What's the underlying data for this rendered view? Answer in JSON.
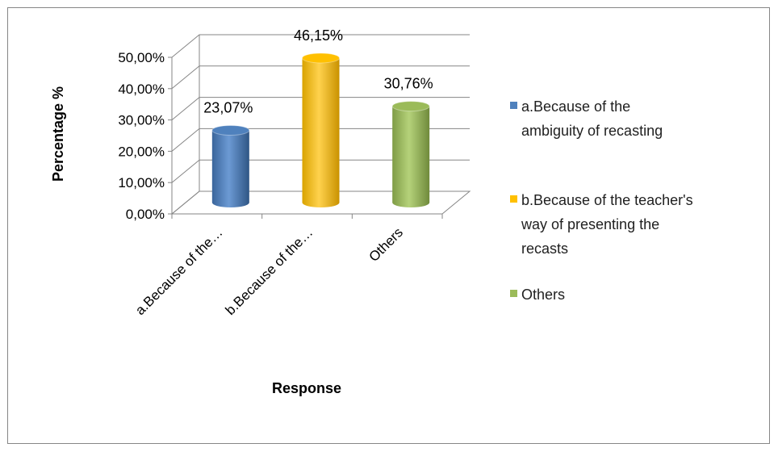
{
  "chart_data": {
    "type": "bar",
    "style": "3d-cylinder",
    "categories": [
      "a.Because of the…",
      "b.Because of the…",
      "Others"
    ],
    "values": [
      23.07,
      46.15,
      30.76
    ],
    "data_labels": [
      "23,07%",
      "46,15%",
      "30,76%"
    ],
    "colors": [
      "#4f81bd",
      "#ffc000",
      "#9bbb59"
    ],
    "xlabel": "Response",
    "ylabel": "Percentage %",
    "ylim": [
      0,
      50
    ],
    "y_ticks": [
      "0,00%",
      "10,00%",
      "20,00%",
      "30,00%",
      "40,00%",
      "50,00%"
    ],
    "grid": true,
    "legend_position": "right",
    "legend": [
      {
        "label_lines": [
          "a.Because of the",
          "ambiguity of recasting"
        ],
        "color": "#4f81bd"
      },
      {
        "label_lines": [
          "b.Because of the teacher's",
          "way of presenting the",
          "recasts"
        ],
        "color": "#ffc000"
      },
      {
        "label_lines": [
          "Others"
        ],
        "color": "#9bbb59"
      }
    ]
  }
}
